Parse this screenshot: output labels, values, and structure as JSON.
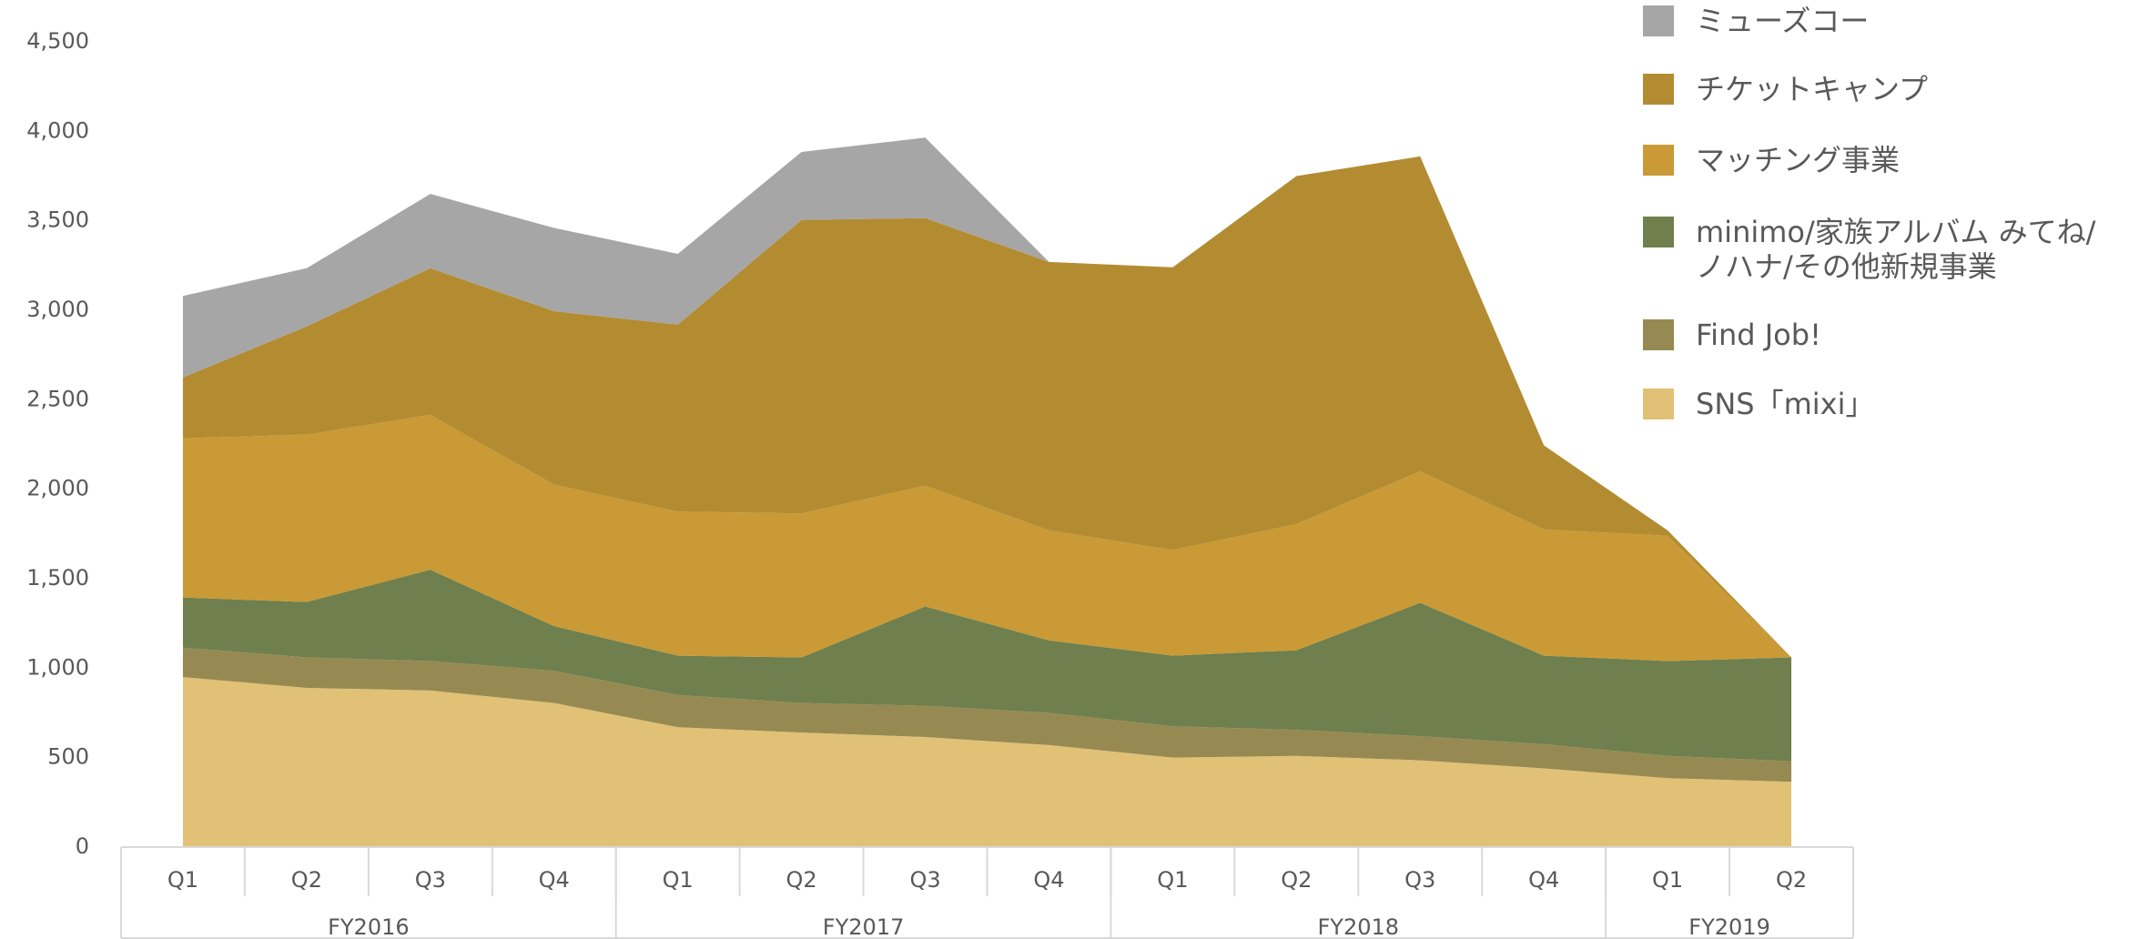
{
  "chart_data": {
    "type": "stacked_area",
    "categories": [
      "Q1",
      "Q2",
      "Q3",
      "Q4",
      "Q1",
      "Q2",
      "Q3",
      "Q4",
      "Q1",
      "Q2",
      "Q3",
      "Q4",
      "Q1",
      "Q2"
    ],
    "x_groups": [
      {
        "name": "FY2016",
        "count": 4
      },
      {
        "name": "FY2017",
        "count": 4
      },
      {
        "name": "FY2018",
        "count": 4
      },
      {
        "name": "FY2019",
        "count": 2
      }
    ],
    "series": [
      {
        "name": "SNS「mixi」",
        "color": "#e1c176",
        "values": [
          950,
          890,
          875,
          805,
          670,
          640,
          615,
          570,
          500,
          510,
          485,
          440,
          385,
          365
        ]
      },
      {
        "name": "Find Job!",
        "color": "#968a52",
        "values": [
          165,
          170,
          165,
          180,
          180,
          165,
          175,
          180,
          175,
          145,
          135,
          135,
          125,
          115
        ]
      },
      {
        "name": "minimo/家族アルバム みてね/ノハナ/その他新規事業",
        "color": "#6f7f4d",
        "values": [
          280,
          310,
          510,
          250,
          220,
          255,
          555,
          405,
          395,
          445,
          745,
          495,
          530,
          580
        ]
      },
      {
        "name": "マッチング事業",
        "color": "#c99a35",
        "values": [
          890,
          935,
          865,
          790,
          805,
          805,
          675,
          615,
          590,
          705,
          735,
          705,
          700,
          0
        ]
      },
      {
        "name": "チケットキャンプ",
        "color": "#b38c32",
        "values": [
          340,
          605,
          820,
          970,
          1045,
          1640,
          1495,
          1500,
          1580,
          1945,
          1760,
          470,
          30,
          0
        ]
      },
      {
        "name": "ミューズコー",
        "color": "#a6a6a6",
        "values": [
          455,
          325,
          415,
          465,
          395,
          380,
          450,
          0,
          0,
          0,
          0,
          0,
          0,
          0
        ]
      }
    ],
    "ylim": [
      0,
      4500
    ],
    "yticks": [
      0,
      500,
      {
        "value": 1000,
        "label": "1,000"
      },
      {
        "value": 1500,
        "label": "1,500"
      },
      {
        "value": 2000,
        "label": "2,000"
      },
      {
        "value": 2500,
        "label": "2,500"
      },
      {
        "value": 3000,
        "label": "3,000"
      },
      {
        "value": 3500,
        "label": "3,500"
      },
      {
        "value": 4000,
        "label": "4,000"
      },
      {
        "value": 4500,
        "label": "4,500"
      }
    ],
    "grid": false
  }
}
